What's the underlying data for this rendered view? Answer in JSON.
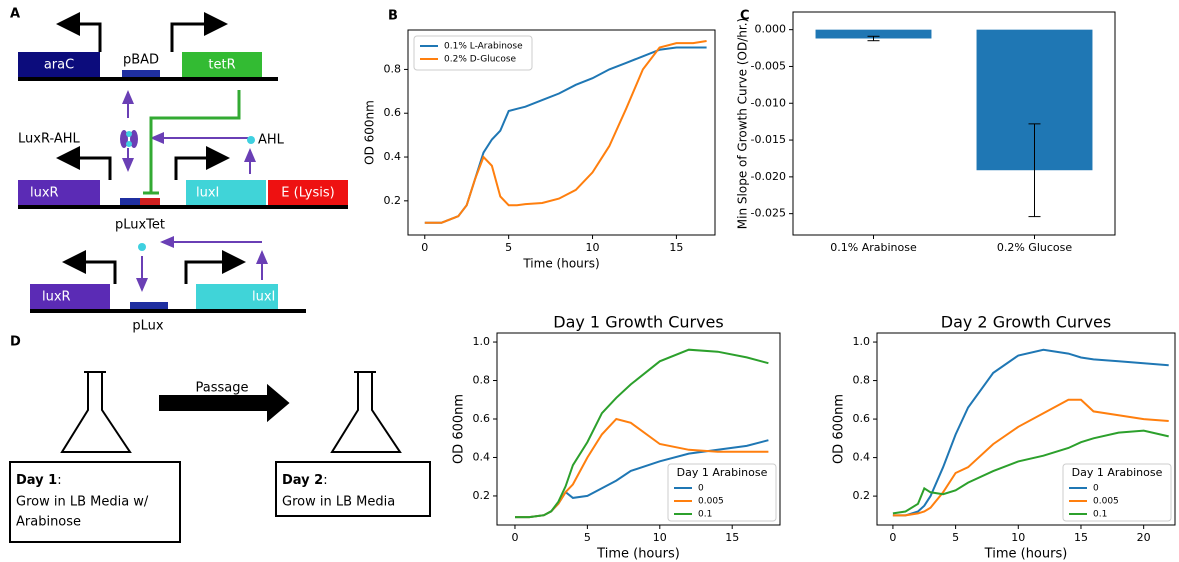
{
  "panel_labels": [
    "A",
    "B",
    "C",
    "D"
  ],
  "diagram_a": {
    "genes_top": [
      "araC",
      "pBAD",
      "tetR"
    ],
    "complex": "LuxR-AHL",
    "signal": "AHL",
    "genes_mid": [
      "luxR",
      "luxI",
      "E (Lysis)"
    ],
    "promoter_mid": "pLuxTet",
    "genes_bottom": [
      "luxR",
      "luxI"
    ],
    "promoter_bottom": "pLux"
  },
  "diagram_d": {
    "arrow": "Passage",
    "day1": {
      "title": "Day 1",
      "colon": ":",
      "lines": [
        "Grow in LB Media w/",
        "Arabinose"
      ]
    },
    "day2": {
      "title": "Day 2",
      "colon": ":",
      "lines": [
        "Grow in LB Media"
      ]
    }
  },
  "chart_data": [
    {
      "type": "line",
      "xlabel": "Time (hours)",
      "ylabel": "OD 600nm",
      "legend": "upper left",
      "x": [
        0,
        1,
        2,
        2.5,
        3,
        3.5,
        4,
        4.5,
        5,
        5.5,
        6,
        7,
        8,
        9,
        10,
        11,
        12,
        13,
        14,
        15,
        16,
        16.8
      ],
      "series": [
        {
          "name": "0.1% L-Arabinose",
          "color": "#1f77b4",
          "values": [
            0.1,
            0.1,
            0.13,
            0.18,
            0.3,
            0.42,
            0.48,
            0.52,
            0.61,
            0.62,
            0.63,
            0.66,
            0.69,
            0.73,
            0.76,
            0.8,
            0.83,
            0.86,
            0.89,
            0.9,
            0.9,
            0.9
          ]
        },
        {
          "name": "0.2% D-Glucose",
          "color": "#ff7f0e",
          "values": [
            0.1,
            0.1,
            0.13,
            0.18,
            0.3,
            0.4,
            0.36,
            0.22,
            0.18,
            0.18,
            0.185,
            0.19,
            0.21,
            0.25,
            0.33,
            0.45,
            0.62,
            0.8,
            0.9,
            0.92,
            0.92,
            0.93
          ]
        }
      ],
      "xlim": [
        -1.0,
        17.3
      ],
      "ylim": [
        0.044,
        0.98
      ],
      "xticks": [
        0,
        5,
        10,
        15
      ],
      "yticks": [
        0.2,
        0.4,
        0.6,
        0.8
      ]
    },
    {
      "type": "bar",
      "ylabel": "Min Slope of Growth Curve (OD/hr.)",
      "color": "#1f77b4",
      "categories": [
        "0.1% Arabinose",
        "0.2% Glucose"
      ],
      "values": [
        -0.0012,
        -0.0191
      ],
      "errors": [
        0.0003,
        0.0063
      ],
      "ylim": [
        -0.0279,
        0.0024
      ],
      "yticks": [
        {
          "value": 0,
          "label": "0.000"
        },
        {
          "value": -0.005,
          "label": "-0.005"
        },
        {
          "value": -0.01,
          "label": "-0.010"
        },
        {
          "value": -0.015,
          "label": "-0.015"
        },
        {
          "value": -0.02,
          "label": "-0.020"
        },
        {
          "value": -0.025,
          "label": "-0.025"
        }
      ]
    },
    {
      "type": "line",
      "title": "Day 1 Growth Curves",
      "xlabel": "Time (hours)",
      "ylabel": "OD 600nm",
      "legend": "lower right",
      "legend_title": "Day 1 Arabinose",
      "x": [
        0,
        1,
        2,
        2.5,
        3,
        3.5,
        4,
        5,
        6,
        7,
        8,
        10,
        12,
        14,
        16,
        17.5
      ],
      "series": [
        {
          "name": "0",
          "color": "#1f77b4",
          "values": [
            0.09,
            0.09,
            0.1,
            0.12,
            0.16,
            0.22,
            0.19,
            0.2,
            0.24,
            0.28,
            0.33,
            0.38,
            0.42,
            0.44,
            0.46,
            0.49
          ]
        },
        {
          "name": "0.005",
          "color": "#ff7f0e",
          "values": [
            0.09,
            0.09,
            0.1,
            0.12,
            0.16,
            0.22,
            0.26,
            0.4,
            0.52,
            0.6,
            0.58,
            0.47,
            0.44,
            0.43,
            0.43,
            0.43
          ]
        },
        {
          "name": "0.1",
          "color": "#2ca02c",
          "values": [
            0.09,
            0.09,
            0.1,
            0.12,
            0.17,
            0.25,
            0.36,
            0.48,
            0.63,
            0.71,
            0.78,
            0.9,
            0.96,
            0.95,
            0.92,
            0.89
          ]
        }
      ],
      "xlim": [
        -1.24,
        18.3
      ],
      "ylim": [
        0.049,
        1.047
      ],
      "xticks": [
        0,
        5,
        10,
        15
      ],
      "yticks": [
        0.2,
        0.4,
        0.6,
        0.8,
        {
          "value": 1,
          "label": "1.0"
        }
      ]
    },
    {
      "type": "line",
      "title": "Day 2 Growth Curves",
      "xlabel": "Time (hours)",
      "ylabel": "OD 600nm",
      "legend": "lower right",
      "legend_title": "Day 1 Arabinose",
      "x": [
        0,
        1,
        2,
        2.5,
        3,
        4,
        5,
        6,
        8,
        10,
        12,
        14,
        15,
        16,
        18,
        20,
        22
      ],
      "series": [
        {
          "name": "0",
          "color": "#1f77b4",
          "values": [
            0.1,
            0.1,
            0.12,
            0.15,
            0.2,
            0.35,
            0.52,
            0.66,
            0.84,
            0.93,
            0.96,
            0.94,
            0.92,
            0.91,
            0.9,
            0.89,
            0.88
          ]
        },
        {
          "name": "0.005",
          "color": "#ff7f0e",
          "values": [
            0.1,
            0.1,
            0.11,
            0.12,
            0.14,
            0.22,
            0.32,
            0.35,
            0.47,
            0.56,
            0.63,
            0.7,
            0.7,
            0.64,
            0.62,
            0.6,
            0.59
          ]
        },
        {
          "name": "0.1",
          "color": "#2ca02c",
          "values": [
            0.11,
            0.12,
            0.16,
            0.24,
            0.22,
            0.21,
            0.23,
            0.27,
            0.33,
            0.38,
            0.41,
            0.45,
            0.48,
            0.5,
            0.53,
            0.54,
            0.51
          ]
        }
      ],
      "xlim": [
        -1.27,
        22.5
      ],
      "ylim": [
        0.05,
        1.047
      ],
      "xticks": [
        0,
        5,
        10,
        15,
        20
      ],
      "yticks": [
        0.2,
        0.4,
        0.6,
        0.8,
        {
          "value": 1,
          "label": "1.0"
        }
      ]
    }
  ]
}
